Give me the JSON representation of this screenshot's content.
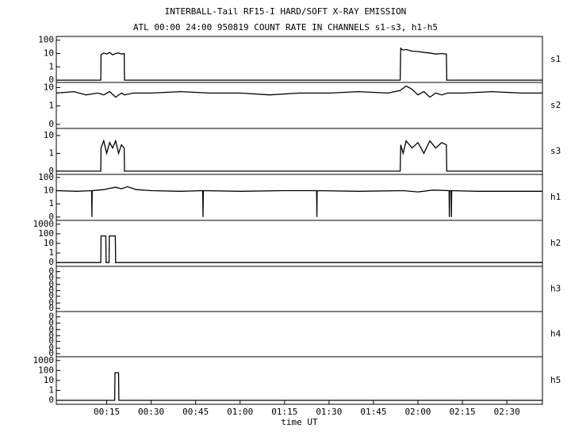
{
  "chart_data": [
    {
      "type": "line",
      "title": "INTERBALL-Tail RF15-I HARD/SOFT X-RAY EMISSION",
      "subtitle": "ATL 00:00 24:00 950819  COUNT RATE IN CHANNELS s1-s3, h1-h5",
      "label": "s1",
      "yscale": "log",
      "color": "#000000",
      "xlim": [
        -2,
        162
      ],
      "ylim": [
        0.067,
        190
      ],
      "yticks": [
        {
          "value": 0.1,
          "label": "0"
        },
        1,
        10,
        100
      ],
      "x": [
        -2,
        13,
        13.1,
        14,
        15,
        16,
        17,
        18,
        19,
        20,
        20.9,
        21,
        114,
        114.2,
        115,
        116,
        118,
        120,
        122,
        124,
        126,
        128,
        129.6,
        129.7,
        162
      ],
      "values": [
        0.1,
        0.1,
        8,
        11,
        9,
        12,
        8,
        10,
        11,
        9,
        10,
        0.1,
        0.1,
        25,
        18,
        20,
        15,
        14,
        12,
        11,
        9,
        10,
        9,
        0.1,
        0.1
      ]
    },
    {
      "type": "line",
      "label": "s2",
      "yscale": "log",
      "color": "#000000",
      "xlim": [
        -2,
        162
      ],
      "ylim": [
        0.06,
        19
      ],
      "yticks": [
        {
          "value": 0.1,
          "label": "0"
        },
        1,
        10
      ],
      "x": [
        -2,
        4,
        8,
        12,
        14,
        16,
        18,
        20,
        21,
        24,
        30,
        40,
        50,
        60,
        70,
        80,
        90,
        100,
        110,
        114,
        116,
        117,
        118,
        120,
        122,
        124,
        126,
        128,
        130,
        135,
        145,
        155,
        162
      ],
      "values": [
        5,
        6,
        4,
        5,
        4,
        6,
        3,
        5,
        4,
        5,
        5,
        6,
        5,
        5,
        4,
        5,
        5,
        6,
        5,
        7,
        12,
        10,
        8,
        4,
        6,
        3,
        5,
        4,
        5,
        5,
        6,
        5,
        5
      ]
    },
    {
      "type": "line",
      "label": "s3",
      "yscale": "log",
      "color": "#000000",
      "xlim": [
        -2,
        162
      ],
      "ylim": [
        0.066,
        25
      ],
      "yticks": [
        {
          "value": 0.1,
          "label": "0"
        },
        1,
        10
      ],
      "x": [
        -2,
        13,
        13.1,
        14,
        15,
        16,
        17,
        18,
        19,
        20,
        20.9,
        21,
        114,
        114.2,
        115,
        116,
        118,
        120,
        122,
        124,
        126,
        128,
        129.6,
        129.7,
        162
      ],
      "values": [
        0.1,
        0.1,
        2,
        5,
        1,
        4,
        2,
        5,
        1,
        3,
        2,
        0.1,
        0.1,
        3,
        1,
        5,
        2,
        4,
        1,
        5,
        2,
        4,
        3,
        0.1,
        0.1
      ]
    },
    {
      "type": "line",
      "label": "h1",
      "yscale": "log",
      "color": "#000000",
      "xlim": [
        -2,
        162
      ],
      "ylim": [
        0.056,
        170
      ],
      "yticks": [
        {
          "value": 0.1,
          "label": "0"
        },
        1,
        10,
        100
      ],
      "x": [
        -2,
        5,
        9.9,
        10,
        10.1,
        14,
        16,
        18,
        20,
        22,
        25,
        30,
        40,
        47.4,
        47.5,
        47.6,
        60,
        75,
        85.8,
        85.9,
        86,
        100,
        115,
        120,
        125,
        130.5,
        130.6,
        130.7,
        131.2,
        131.3,
        131.4,
        140,
        162
      ],
      "values": [
        10,
        9,
        10,
        0.1,
        10,
        12,
        15,
        18,
        14,
        20,
        12,
        10,
        9,
        10,
        0.1,
        10,
        9,
        10,
        10,
        0.1,
        10,
        9,
        10,
        8,
        11,
        10,
        0.1,
        10,
        10,
        0.1,
        10,
        9,
        9
      ]
    },
    {
      "type": "line",
      "label": "h2",
      "yscale": "log",
      "color": "#000000",
      "xlim": [
        -2,
        162
      ],
      "ylim": [
        0.04,
        2500
      ],
      "yticks": [
        {
          "value": 0.1,
          "label": "0"
        },
        1,
        10,
        100,
        1000
      ],
      "x": [
        -2,
        13,
        13.1,
        14.7,
        14.8,
        15.8,
        15.9,
        17.9,
        18,
        162
      ],
      "values": [
        0.1,
        0.1,
        60,
        60,
        0.1,
        0.1,
        60,
        60,
        0.1,
        0.1
      ]
    },
    {
      "type": "line",
      "label": "h3",
      "yscale": "log",
      "color": "#000000",
      "xlim": [
        -2,
        162
      ],
      "ylim": [
        0.05,
        0.2
      ],
      "yticks": [
        {
          "value": 0.055,
          "label": "0"
        },
        {
          "value": 0.065,
          "label": "0"
        },
        {
          "value": 0.08,
          "label": "0"
        },
        {
          "value": 0.095,
          "label": "0"
        },
        {
          "value": 0.115,
          "label": "0"
        },
        {
          "value": 0.14,
          "label": "0"
        },
        {
          "value": 0.17,
          "label": "0"
        }
      ],
      "x": [],
      "values": []
    },
    {
      "type": "line",
      "label": "h4",
      "yscale": "log",
      "color": "#000000",
      "xlim": [
        -2,
        162
      ],
      "ylim": [
        0.05,
        0.2
      ],
      "yticks": [
        {
          "value": 0.055,
          "label": "0"
        },
        {
          "value": 0.065,
          "label": "0"
        },
        {
          "value": 0.08,
          "label": "0"
        },
        {
          "value": 0.095,
          "label": "0"
        },
        {
          "value": 0.115,
          "label": "0"
        },
        {
          "value": 0.14,
          "label": "0"
        },
        {
          "value": 0.17,
          "label": "0"
        }
      ],
      "x": [],
      "values": []
    },
    {
      "type": "line",
      "label": "h5",
      "yscale": "log",
      "color": "#000000",
      "xlim": [
        -2,
        162
      ],
      "ylim": [
        0.04,
        2400
      ],
      "yticks": [
        {
          "value": 0.1,
          "label": "0"
        },
        1,
        10,
        100,
        1000
      ],
      "x": [
        -2,
        17.7,
        17.8,
        19,
        19.1,
        162
      ],
      "values": [
        0.1,
        0.1,
        60,
        60,
        0.1,
        0.1
      ],
      "xlabel": "time UT",
      "xticks": [
        {
          "value": 15,
          "label": "00:15"
        },
        {
          "value": 30,
          "label": "00:30"
        },
        {
          "value": 45,
          "label": "00:45"
        },
        {
          "value": 60,
          "label": "01:00"
        },
        {
          "value": 75,
          "label": "01:15"
        },
        {
          "value": 90,
          "label": "01:30"
        },
        {
          "value": 105,
          "label": "01:45"
        },
        {
          "value": 120,
          "label": "02:00"
        },
        {
          "value": 135,
          "label": "02:15"
        },
        {
          "value": 150,
          "label": "02:30"
        }
      ]
    }
  ]
}
